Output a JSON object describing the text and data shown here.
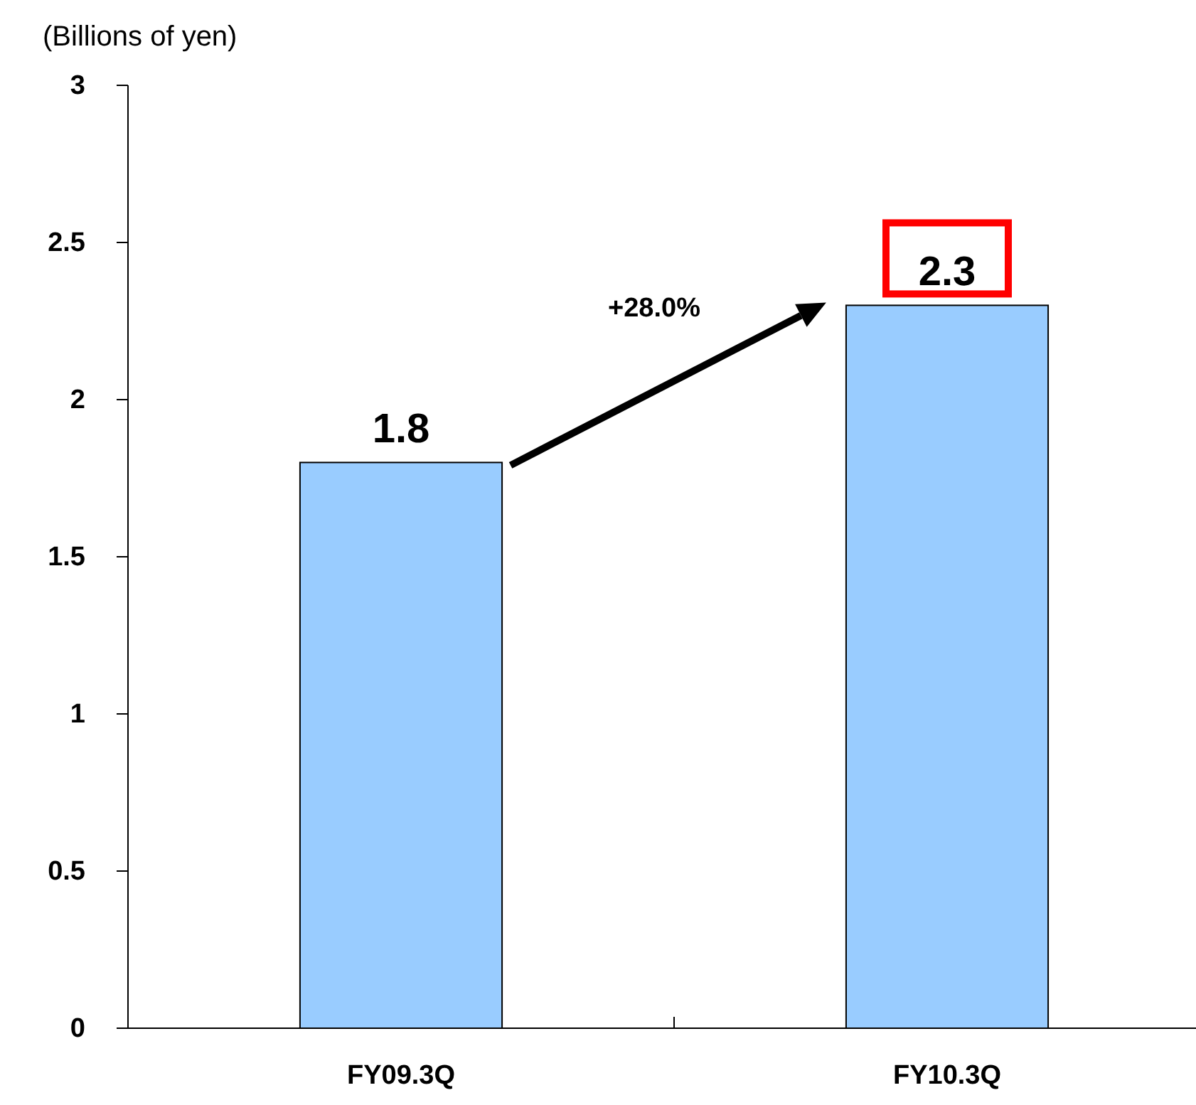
{
  "chart_data": {
    "type": "bar",
    "ylabel": "(Billions of yen)",
    "categories": [
      "FY09.3Q",
      "FY10.3Q"
    ],
    "values": [
      1.8,
      2.3
    ],
    "color": "#99ccff",
    "ylim": [
      0,
      3
    ],
    "yticks": [
      0,
      0.5,
      1,
      1.5,
      2,
      2.5,
      3
    ],
    "data_labels": true,
    "grid": false,
    "annotations": [
      "+28.0%"
    ]
  }
}
